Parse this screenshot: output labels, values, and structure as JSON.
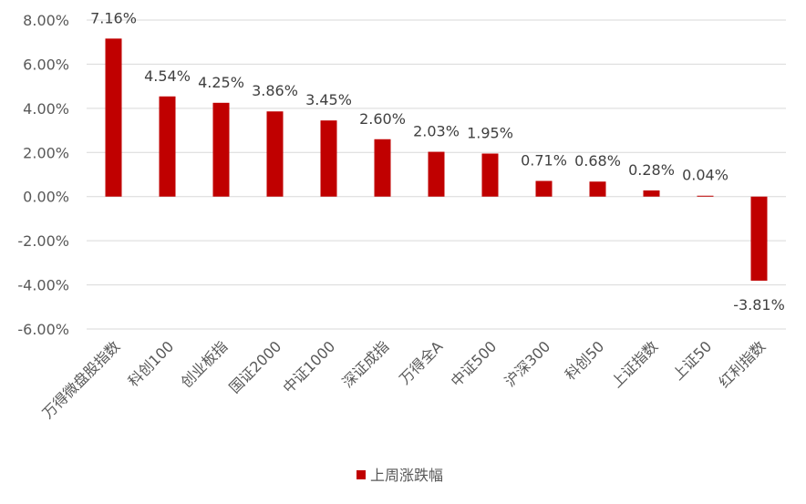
{
  "chart_data": {
    "type": "bar",
    "categories": [
      "万得微盘股指数",
      "科创100",
      "创业板指",
      "国证2000",
      "中证1000",
      "深证成指",
      "万得全A",
      "中证500",
      "沪深300",
      "科创50",
      "上证指数",
      "上证50",
      "红利指数"
    ],
    "series": [
      {
        "name": "上周涨跌幅",
        "values": [
          7.16,
          4.54,
          4.25,
          3.86,
          3.45,
          2.6,
          2.03,
          1.95,
          0.71,
          0.68,
          0.28,
          0.04,
          -3.81
        ],
        "labels": [
          "7.16%",
          "4.54%",
          "4.25%",
          "3.86%",
          "3.45%",
          "2.60%",
          "2.03%",
          "1.95%",
          "0.71%",
          "0.68%",
          "0.28%",
          "0.04%",
          "-3.81%"
        ]
      }
    ],
    "yticks": [
      8,
      6,
      4,
      2,
      0,
      -2,
      -4,
      -6
    ],
    "ytick_labels": [
      "8.00%",
      "6.00%",
      "4.00%",
      "2.00%",
      "0.00%",
      "-2.00%",
      "-4.00%",
      "-6.00%"
    ],
    "ylim": [
      -6,
      8
    ],
    "title": "",
    "xlabel": "",
    "ylabel": "",
    "grid": true,
    "legend_position": "bottom",
    "bar_color": "#c00000"
  }
}
